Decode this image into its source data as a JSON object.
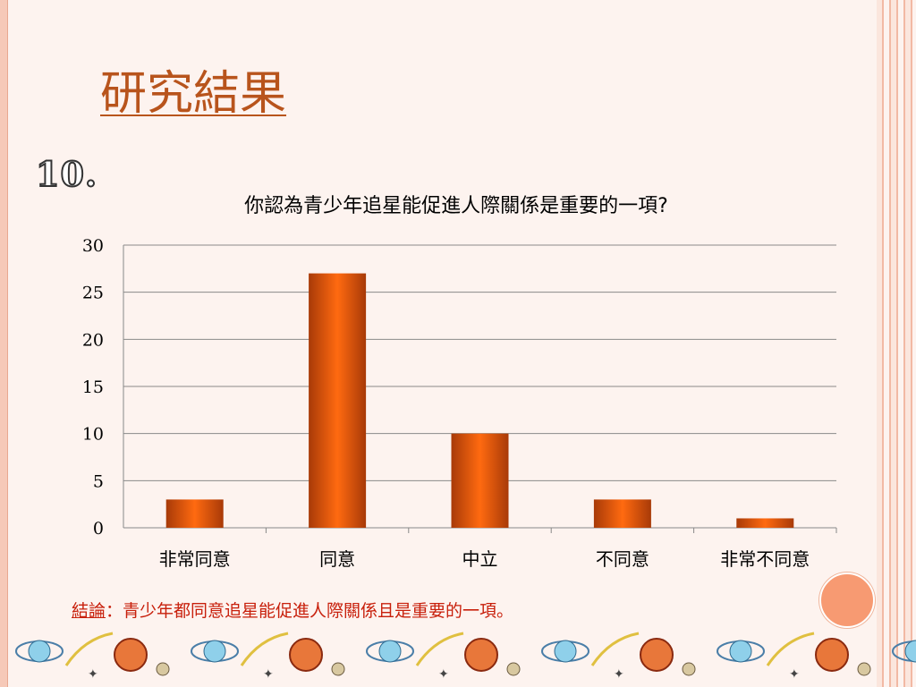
{
  "slide": {
    "title": "研究結果",
    "question_number": "10."
  },
  "conclusion": {
    "label": "結論",
    "text": "：青少年都同意追星能促進人際關係且是重要的一項。"
  },
  "colors": {
    "bar_dark": "#a83a08",
    "bar_light": "#ff6a10",
    "title": "#b8541c",
    "conclusion": "#c8200c",
    "accent_dot": "#f79a72"
  },
  "chart_data": {
    "type": "bar",
    "title": "你認為青少年追星能促進人際關係是重要的一項?",
    "categories": [
      "非常同意",
      "同意",
      "中立",
      "不同意",
      "非常不同意"
    ],
    "values": [
      3,
      27,
      10,
      3,
      1
    ],
    "ylim": [
      0,
      30
    ],
    "yticks": [
      0,
      5,
      10,
      15,
      20,
      25,
      30
    ],
    "grid": true,
    "legend": false,
    "xlabel": "",
    "ylabel": ""
  }
}
